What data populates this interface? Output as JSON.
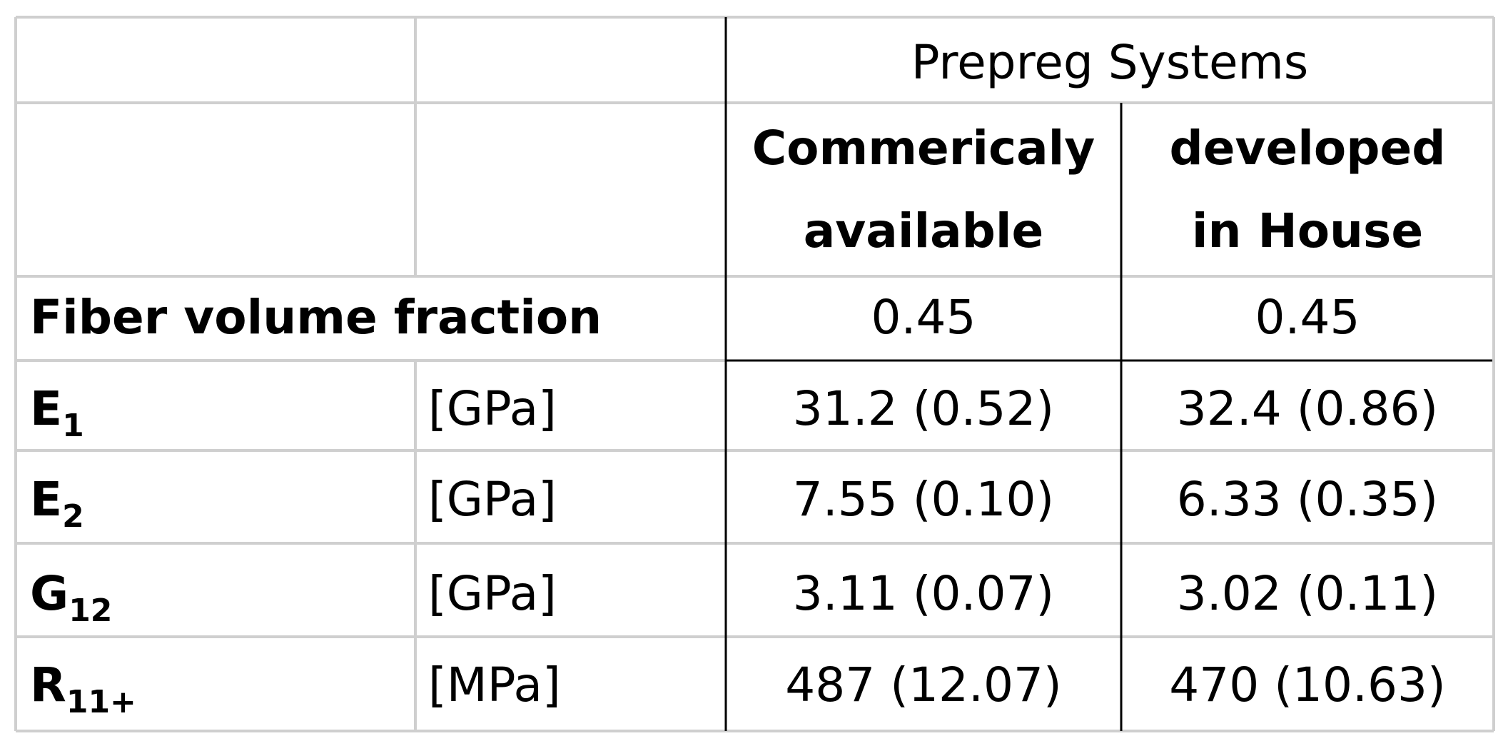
{
  "table": {
    "group_header": "Prepreg Systems",
    "columns": [
      [
        "Commericaly",
        "available"
      ],
      [
        "developed",
        "in House"
      ]
    ],
    "fiber_row": {
      "label": "Fiber volume fraction",
      "values": [
        "0.45",
        "0.45"
      ]
    },
    "rows": [
      {
        "symbol": "E",
        "sub": "1",
        "unit": "[GPa]",
        "values": [
          "31.2 (0.52)",
          "32.4 (0.86)"
        ]
      },
      {
        "symbol": "E",
        "sub": "2",
        "unit": "[GPa]",
        "values": [
          "7.55 (0.10)",
          "6.33 (0.35)"
        ]
      },
      {
        "symbol": "G",
        "sub": "12",
        "unit": "[GPa]",
        "values": [
          "3.11 (0.07)",
          "3.02 (0.11)"
        ]
      },
      {
        "symbol": "R",
        "sub": "11+",
        "unit": "[MPa]",
        "values": [
          "487 (12.07)",
          "470 (10.63)"
        ]
      }
    ]
  }
}
